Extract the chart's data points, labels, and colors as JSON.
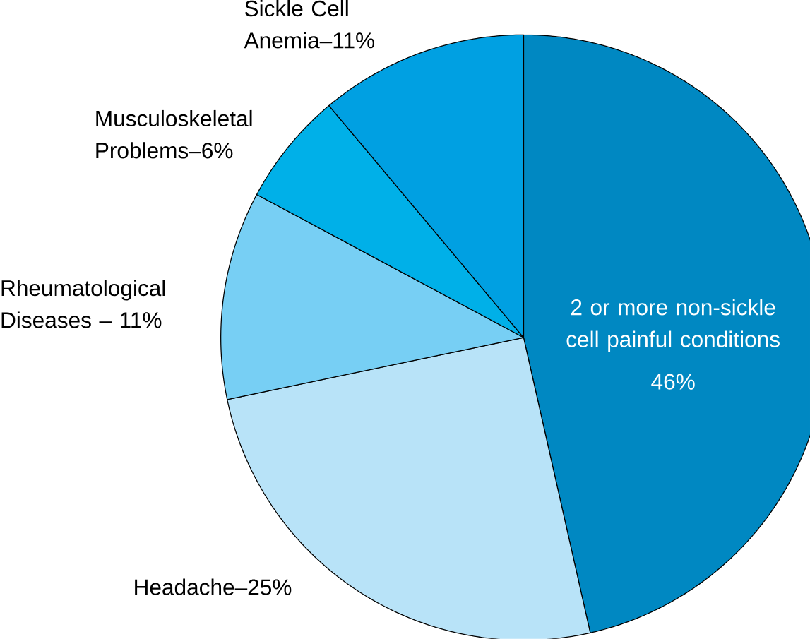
{
  "chart_data": {
    "type": "pie",
    "categories": [
      "2 or more non-sickle cell painful conditions",
      "Headache–25%",
      "Rheumatological Diseases – 11%",
      "Musculoskeletal Problems–6%",
      "Sickle Cell Anemia–11%"
    ],
    "values": [
      46,
      25,
      11,
      6,
      11
    ],
    "value_labels": [
      "46%",
      null,
      null,
      null,
      null
    ],
    "colors": [
      "#0088c2",
      "#b8e3f8",
      "#77cff4",
      "#00b0e8",
      "#00a0e2"
    ]
  }
}
